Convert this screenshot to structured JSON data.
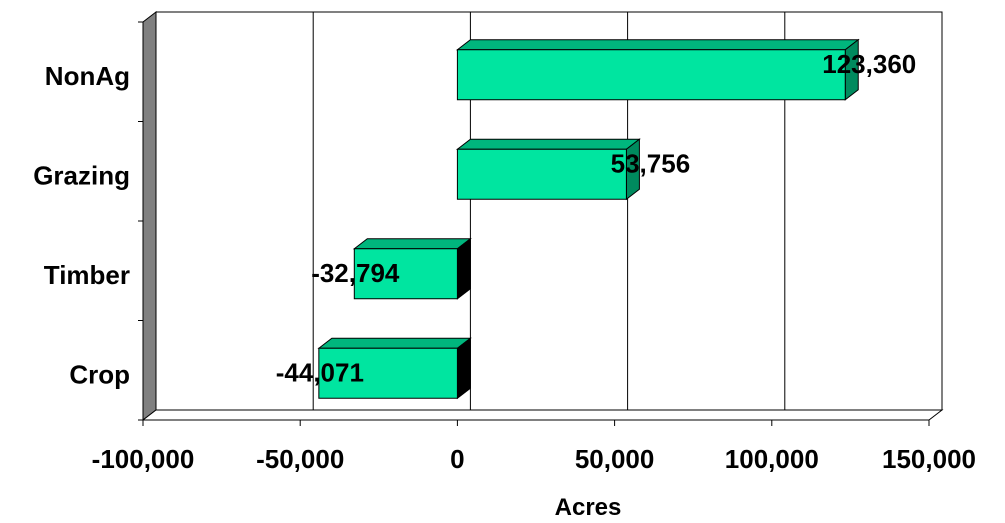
{
  "chart_data": {
    "type": "bar",
    "orientation": "horizontal",
    "style": "3d",
    "categories": [
      "NonAg",
      "Grazing",
      "Timber",
      "Crop"
    ],
    "values": [
      123360,
      53756,
      -32794,
      -44071
    ],
    "data_labels": [
      "123,360",
      "53,756",
      "-32,794",
      "-44,071"
    ],
    "x_ticks": [
      -100000,
      -50000,
      0,
      50000,
      100000,
      150000
    ],
    "x_tick_labels": [
      "-100,000",
      "-50,000",
      "0",
      "50,000",
      "100,000",
      "150,000"
    ],
    "xlim": [
      -100000,
      150000
    ],
    "xlabel": "Acres",
    "ylabel": "",
    "title": "",
    "grid": "vertical",
    "legend": "none",
    "colors": {
      "bar_front": "#00e5a0",
      "bar_top": "#00b67d",
      "bar_side": "#008a5e",
      "bar_side_negative": "#000000",
      "wall_side": "#808080",
      "grid": "#000000"
    }
  }
}
